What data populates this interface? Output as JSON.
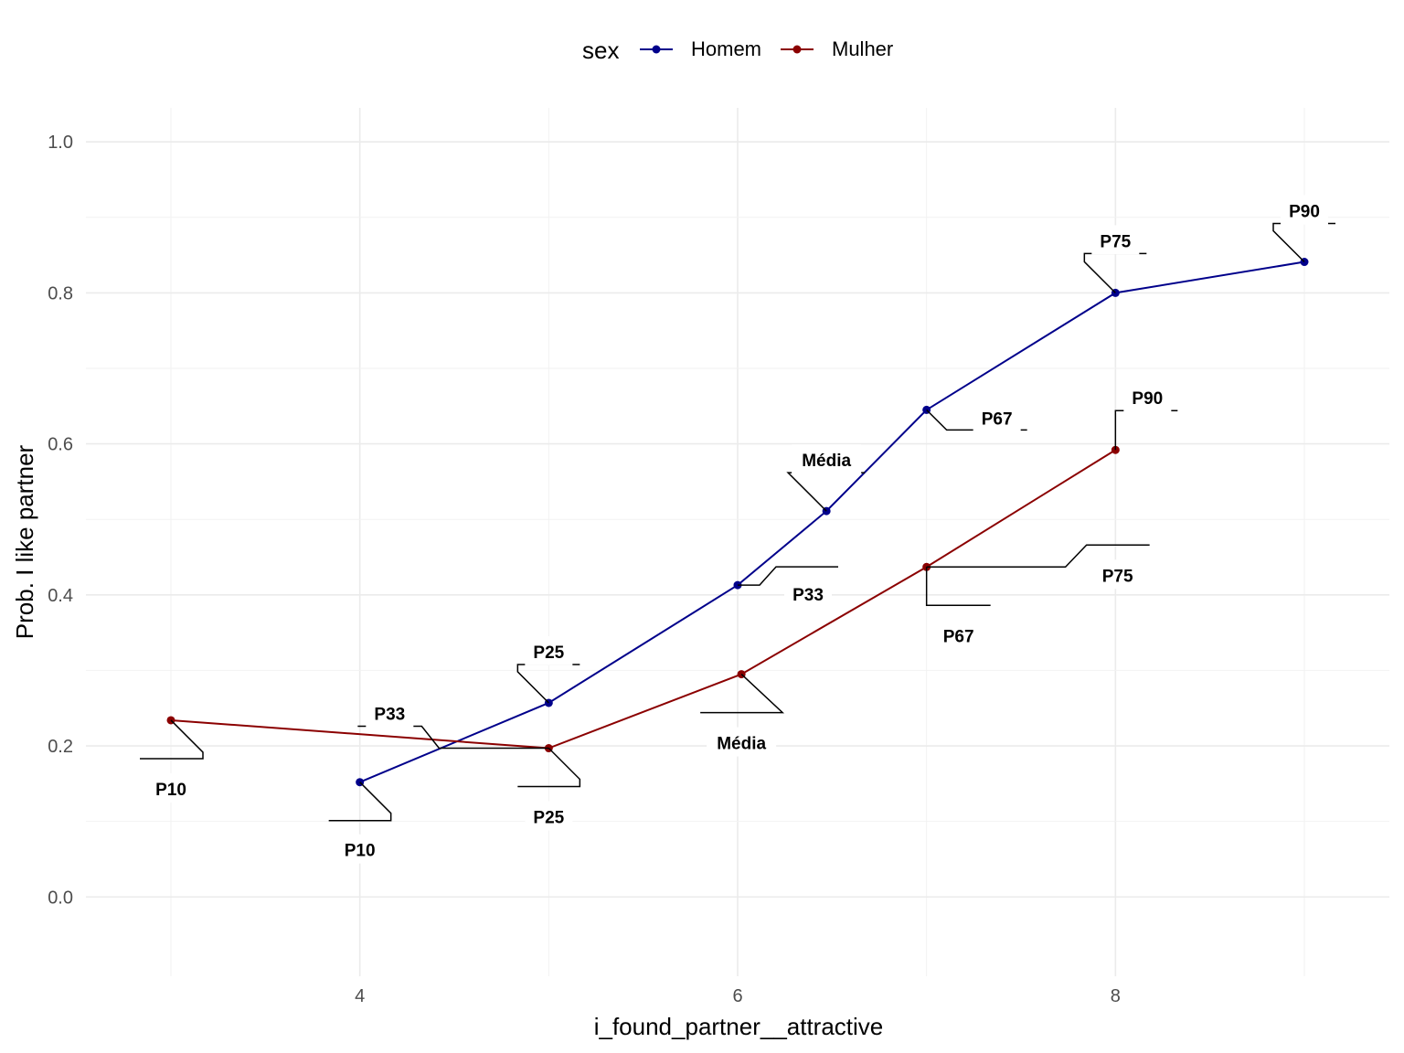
{
  "chart_data": {
    "type": "line",
    "title": "",
    "xlabel": "i_found_partner__attractive",
    "ylabel": "Prob. I like partner",
    "xlim": [
      2.55,
      9.45
    ],
    "ylim": [
      -0.105,
      1.045
    ],
    "x_ticks": [
      4,
      6,
      8
    ],
    "x_tick_labels": [
      "4",
      "6",
      "8"
    ],
    "y_ticks": [
      0,
      0.2,
      0.4,
      0.6,
      0.8,
      1.0
    ],
    "y_tick_labels": [
      "0.0",
      "0.2",
      "0.4",
      "0.6",
      "0.8",
      "1.0"
    ],
    "grid": true,
    "legend": {
      "title": "sex",
      "position": "top"
    },
    "series": [
      {
        "name": "Homem",
        "color": "#00008b",
        "x": [
          4,
          5,
          6,
          6.47,
          7,
          8,
          9
        ],
        "y": [
          0.152,
          0.257,
          0.413,
          0.511,
          0.645,
          0.8,
          0.841
        ],
        "labels": [
          "P10",
          "P25",
          "P33",
          "Média",
          "P67",
          "P75",
          "P90"
        ]
      },
      {
        "name": "Mulher",
        "color": "#8b0000",
        "x": [
          3,
          5,
          6.02,
          7,
          8
        ],
        "y": [
          0.234,
          0.197,
          0.295,
          0.437,
          0.592
        ],
        "labels": [
          "P10",
          "P25",
          "Média",
          "P67",
          "P90"
        ]
      }
    ],
    "extra_annotations": [
      {
        "series": "Mulher",
        "label": "P33",
        "x": 5,
        "y": 0.197
      },
      {
        "series": "Mulher",
        "label": "P75",
        "x": 7,
        "y": 0.437
      }
    ]
  }
}
